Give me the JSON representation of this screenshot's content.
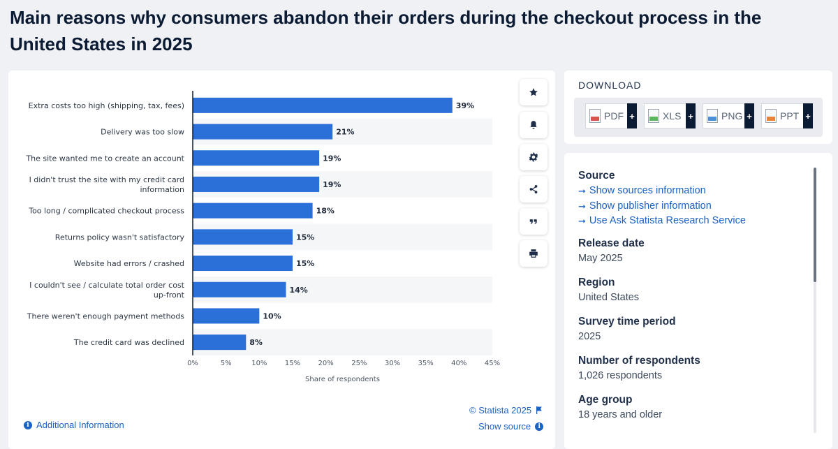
{
  "page": {
    "title": "Main reasons why consumers abandon their orders during the checkout process in the United States in 2025"
  },
  "chart_data": {
    "type": "bar",
    "orientation": "horizontal",
    "title": "Main reasons why consumers abandon their orders during the checkout process in the United States in 2025",
    "categories": [
      "Extra costs too high (shipping, tax, fees)",
      "Delivery was too slow",
      "The site wanted me to create an account",
      "I didn't trust the site with my credit card information",
      "Too long / complicated checkout process",
      "Returns policy wasn't satisfactory",
      "Website had errors / crashed",
      "I couldn't see / calculate total order cost up-front",
      "There weren't enough payment methods",
      "The credit card was declined"
    ],
    "category_lines": [
      [
        "Extra costs too high (shipping, tax, fees)"
      ],
      [
        "Delivery was too slow"
      ],
      [
        "The site wanted me to create an account"
      ],
      [
        "I didn't trust the site with my credit card",
        "information"
      ],
      [
        "Too long / complicated checkout process"
      ],
      [
        "Returns policy wasn't satisfactory"
      ],
      [
        "Website had errors / crashed"
      ],
      [
        "I couldn't see / calculate total order cost",
        "up-front"
      ],
      [
        "There weren't enough payment methods"
      ],
      [
        "The credit card was declined"
      ]
    ],
    "values": [
      39,
      21,
      19,
      19,
      18,
      15,
      15,
      14,
      10,
      8
    ],
    "value_labels": [
      "39%",
      "21%",
      "19%",
      "19%",
      "18%",
      "15%",
      "15%",
      "14%",
      "10%",
      "8%"
    ],
    "xlabel": "Share of respondents",
    "ylabel": "",
    "xlim": [
      0,
      45
    ],
    "xticks": [
      0,
      5,
      10,
      15,
      20,
      25,
      30,
      35,
      40,
      45
    ],
    "xtick_labels": [
      "0%",
      "5%",
      "10%",
      "15%",
      "20%",
      "25%",
      "30%",
      "35%",
      "40%",
      "45%"
    ],
    "bar_color": "#2b6fd8",
    "stripe_color": "#f5f6f8",
    "grid": false,
    "legend": "none"
  },
  "toolbar": {
    "items": [
      {
        "icon": "star-icon",
        "label": "Favorite"
      },
      {
        "icon": "bell-icon",
        "label": "Notifications"
      },
      {
        "icon": "gear-icon",
        "label": "Settings"
      },
      {
        "icon": "share-icon",
        "label": "Share"
      },
      {
        "icon": "quote-icon",
        "label": "Cite"
      },
      {
        "icon": "print-icon",
        "label": "Print"
      }
    ]
  },
  "download": {
    "title": "DOWNLOAD",
    "formats": [
      {
        "label": "PDF",
        "color": "#d9534f"
      },
      {
        "label": "XLS",
        "color": "#5cb85c"
      },
      {
        "label": "PNG",
        "color": "#4a90d9"
      },
      {
        "label": "PPT",
        "color": "#e8843a"
      }
    ],
    "plus": "+"
  },
  "info": {
    "source_heading": "Source",
    "links": [
      "Show sources information",
      "Show publisher information",
      "Use Ask Statista Research Service"
    ],
    "release_heading": "Release date",
    "release_value": "May 2025",
    "region_heading": "Region",
    "region_value": "United States",
    "survey_heading": "Survey time period",
    "survey_value": "2025",
    "respondents_heading": "Number of respondents",
    "respondents_value": "1,026 respondents",
    "age_heading": "Age group",
    "age_value": "18 years and older"
  },
  "footer": {
    "additional_info": "Additional Information",
    "copyright": "© Statista 2025",
    "show_source": "Show source"
  },
  "colors": {
    "accent": "#1a62c4",
    "dark": "#0b1b33",
    "background": "#eff1f5"
  }
}
